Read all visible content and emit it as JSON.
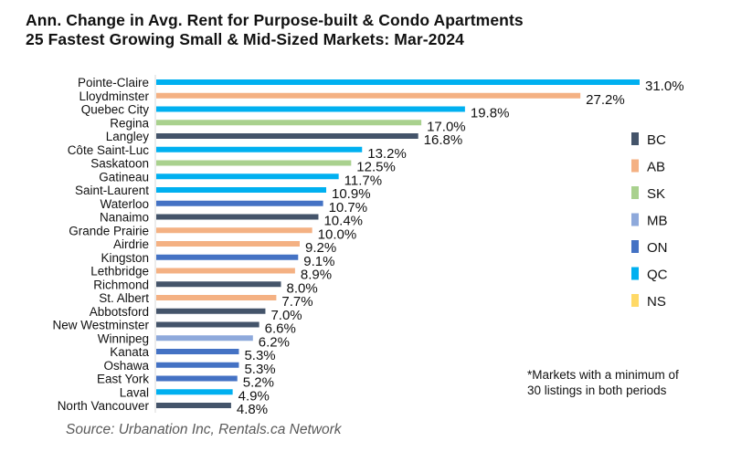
{
  "chart_data": {
    "type": "bar",
    "orientation": "horizontal",
    "title": "Ann. Change in Avg. Rent for Purpose-built & Condo Apartments",
    "subtitle": "25 Fastest Growing Small & Mid-Sized Markets: Mar-2024",
    "xlabel": "",
    "ylabel": "",
    "xlim": [
      0,
      31.0
    ],
    "grid": false,
    "legend_position": "right",
    "legend": [
      {
        "key": "BC",
        "label": "BC",
        "color": "#44546A"
      },
      {
        "key": "AB",
        "label": "AB",
        "color": "#F4B183"
      },
      {
        "key": "SK",
        "label": "SK",
        "color": "#A9D18E"
      },
      {
        "key": "MB",
        "label": "MB",
        "color": "#8EA9DB"
      },
      {
        "key": "ON",
        "label": "ON",
        "color": "#4472C4"
      },
      {
        "key": "QC",
        "label": "QC",
        "color": "#00B0F0"
      },
      {
        "key": "NS",
        "label": "NS",
        "color": "#FFD966"
      }
    ],
    "categories": [
      "Pointe-Claire",
      "Lloydminster",
      "Quebec City",
      "Regina",
      "Langley",
      "Côte Saint-Luc",
      "Saskatoon",
      "Gatineau",
      "Saint-Laurent",
      "Waterloo",
      "Nanaimo",
      "Grande Prairie",
      "Airdrie",
      "Kingston",
      "Lethbridge",
      "Richmond",
      "St. Albert",
      "Abbotsford",
      "New Westminster",
      "Winnipeg",
      "Kanata",
      "Oshawa",
      "East York",
      "Laval",
      "North Vancouver"
    ],
    "values": [
      31.0,
      27.2,
      19.8,
      17.0,
      16.8,
      13.2,
      12.5,
      11.7,
      10.9,
      10.7,
      10.4,
      10.0,
      9.2,
      9.1,
      8.9,
      8.0,
      7.7,
      7.0,
      6.6,
      6.2,
      5.3,
      5.3,
      5.2,
      4.9,
      4.8
    ],
    "value_labels": [
      "31.0%",
      "27.2%",
      "19.8%",
      "17.0%",
      "16.8%",
      "13.2%",
      "12.5%",
      "11.7%",
      "10.9%",
      "10.7%",
      "10.4%",
      "10.0%",
      "9.2%",
      "9.1%",
      "8.9%",
      "8.0%",
      "7.7%",
      "7.0%",
      "6.6%",
      "6.2%",
      "5.3%",
      "5.3%",
      "5.2%",
      "4.9%",
      "4.8%"
    ],
    "province": [
      "QC",
      "AB",
      "QC",
      "SK",
      "BC",
      "QC",
      "SK",
      "QC",
      "QC",
      "ON",
      "BC",
      "AB",
      "AB",
      "ON",
      "AB",
      "BC",
      "AB",
      "BC",
      "BC",
      "MB",
      "ON",
      "ON",
      "ON",
      "QC",
      "BC"
    ],
    "unit": "%"
  },
  "note": {
    "line1": "*Markets with a minimum of",
    "line2": "30 listings in both periods"
  },
  "source": "Source: Urbanation Inc, Rentals.ca Network"
}
